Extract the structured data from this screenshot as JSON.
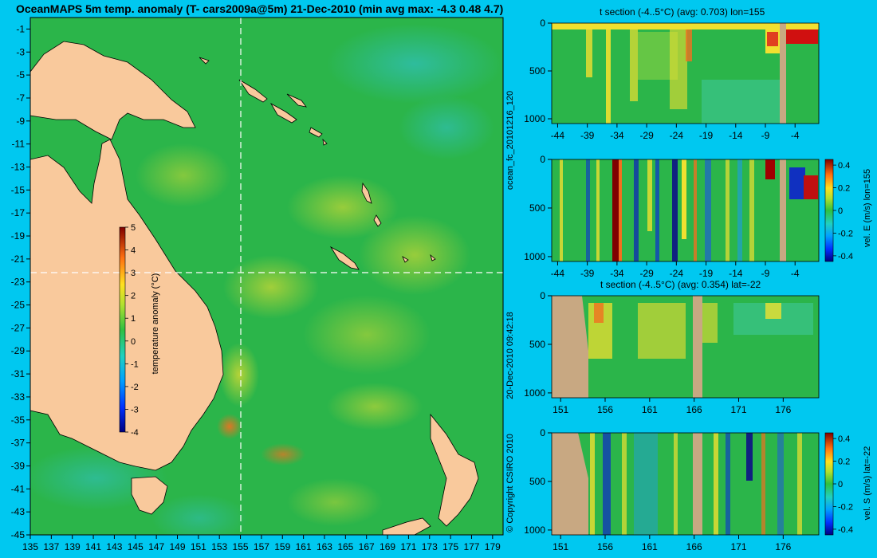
{
  "title": "OceanMAPS 5m temp. anomaly (T- cars2009a@5m) 21-Dec-2010 (min avg max: -4.3 0.48 4.7)",
  "side_text": {
    "run": "ocean_fc_20101216_120",
    "generated": "20-Dec-2010 09:42:18",
    "copyright": "© Copyright CSIRO 2010"
  },
  "colors": {
    "background": "#00c8f0",
    "land": "#f9c99c",
    "section_land": "#c8a882",
    "ocean_mid": "#2bb54a",
    "warm": "#f0e030",
    "hot": "#e04020",
    "cool": "#20a0d0",
    "crosshair": "#ffffff"
  },
  "chart_data": [
    {
      "type": "heatmap",
      "name": "map",
      "title": "OceanMAPS 5m temp. anomaly (T- cars2009a@5m) 21-Dec-2010 (min avg max: -4.3 0.48 4.7)",
      "x_ticks": [
        "135",
        "137",
        "139",
        "141",
        "143",
        "145",
        "147",
        "149",
        "151",
        "153",
        "155",
        "157",
        "159",
        "161",
        "163",
        "165",
        "167",
        "169",
        "171",
        "173",
        "175",
        "177",
        "179"
      ],
      "y_ticks": [
        "-1",
        "-3",
        "-5",
        "-7",
        "-9",
        "-11",
        "-13",
        "-15",
        "-17",
        "-19",
        "-21",
        "-23",
        "-25",
        "-27",
        "-29",
        "-31",
        "-33",
        "-35",
        "-37",
        "-39",
        "-41",
        "-43",
        "-45"
      ],
      "xlim": [
        135,
        180
      ],
      "ylim": [
        -45,
        0
      ],
      "crosshair": {
        "lon": 155,
        "lat": -22
      },
      "colorbar": {
        "label": "temperature anomaly (°C)",
        "ticks": [
          "5",
          "4",
          "3",
          "2",
          "1",
          "0",
          "-1",
          "-2",
          "-3",
          "-4"
        ],
        "range": [
          -4,
          5
        ]
      }
    },
    {
      "type": "heatmap",
      "name": "t-section-lon",
      "title": "t section (-4..5°C) (avg: 0.703) lon=155",
      "x_ticks": [
        "-44",
        "-39",
        "-34",
        "-29",
        "-24",
        "-19",
        "-14",
        "-9",
        "-4"
      ],
      "y_ticks": [
        "0",
        "500",
        "1000"
      ],
      "xlim": [
        -45,
        0
      ],
      "ylim": [
        1050,
        0
      ]
    },
    {
      "type": "heatmap",
      "name": "v-section-lon",
      "title": "",
      "x_ticks": [
        "-44",
        "-39",
        "-34",
        "-29",
        "-24",
        "-19",
        "-14",
        "-9",
        "-4"
      ],
      "y_ticks": [
        "0",
        "500",
        "1000"
      ],
      "xlim": [
        -45,
        0
      ],
      "ylim": [
        1050,
        0
      ],
      "colorbar": {
        "label": "vel. E (m/s) lon=155",
        "ticks": [
          "0.4",
          "0.2",
          "0",
          "-0.2",
          "-0.4"
        ],
        "range": [
          -0.45,
          0.45
        ]
      }
    },
    {
      "type": "heatmap",
      "name": "t-section-lat",
      "title": "t section (-4..5°C) (avg: 0.354) lat=-22",
      "x_ticks": [
        "151",
        "156",
        "161",
        "166",
        "171",
        "176"
      ],
      "y_ticks": [
        "0",
        "500",
        "1000"
      ],
      "xlim": [
        150,
        180
      ],
      "ylim": [
        1050,
        0
      ]
    },
    {
      "type": "heatmap",
      "name": "v-section-lat",
      "title": "",
      "x_ticks": [
        "151",
        "156",
        "161",
        "166",
        "171",
        "176"
      ],
      "y_ticks": [
        "0",
        "500",
        "1000"
      ],
      "xlim": [
        150,
        180
      ],
      "ylim": [
        1050,
        0
      ],
      "colorbar": {
        "label": "vel. S (m/s) lat=-22",
        "ticks": [
          "0.4",
          "0.2",
          "0",
          "-0.2",
          "-0.4"
        ],
        "range": [
          -0.45,
          0.45
        ]
      }
    }
  ]
}
